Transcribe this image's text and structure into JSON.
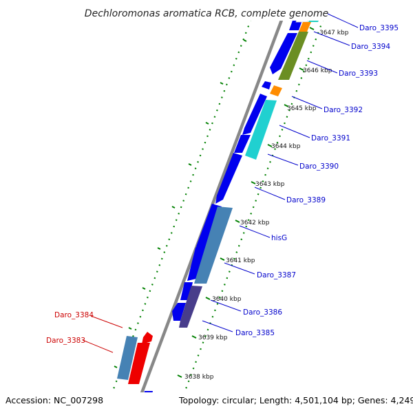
{
  "title": "Dechloromonas aromatica RCB, complete genome",
  "footer": {
    "accession": "Accession: NC_007298",
    "summary": "Topology: circular; Length: 4,501,104 bp; Genes: 4,249"
  },
  "ticks": [
    "3647 kbp",
    "3646 kbp",
    "3645 kbp",
    "3644 kbp",
    "3643 kbp",
    "3642 kbp",
    "3641 kbp",
    "3640 kbp",
    "3639 kbp",
    "3638 kbp"
  ],
  "gene_labels": [
    {
      "text": "Daro_3395",
      "color": "#0000cc",
      "side": "right"
    },
    {
      "text": "Daro_3394",
      "color": "#0000cc",
      "side": "right"
    },
    {
      "text": "Daro_3393",
      "color": "#0000cc",
      "side": "right"
    },
    {
      "text": "Daro_3392",
      "color": "#0000cc",
      "side": "right"
    },
    {
      "text": "Daro_3391",
      "color": "#0000cc",
      "side": "right"
    },
    {
      "text": "Daro_3390",
      "color": "#0000cc",
      "side": "right"
    },
    {
      "text": "Daro_3389",
      "color": "#0000cc",
      "side": "right"
    },
    {
      "text": "hisG",
      "color": "#0000cc",
      "side": "right"
    },
    {
      "text": "Daro_3387",
      "color": "#0000cc",
      "side": "right"
    },
    {
      "text": "Daro_3386",
      "color": "#0000cc",
      "side": "right"
    },
    {
      "text": "Daro_3385",
      "color": "#0000cc",
      "side": "right"
    },
    {
      "text": "Daro_3384",
      "color": "#cc0000",
      "side": "left"
    },
    {
      "text": "Daro_3383",
      "color": "#cc0000",
      "side": "left"
    }
  ],
  "colors": {
    "cds_blue": "#0000ee",
    "cds_steel": "#4682b4",
    "cds_olive": "#6b8e23",
    "cds_cyan": "#20d0d0",
    "cds_orange": "#ff8c00",
    "cds_purple": "#483d8b",
    "cds_red": "#ee0000",
    "backbone": "#888888",
    "dots": "#008000"
  }
}
